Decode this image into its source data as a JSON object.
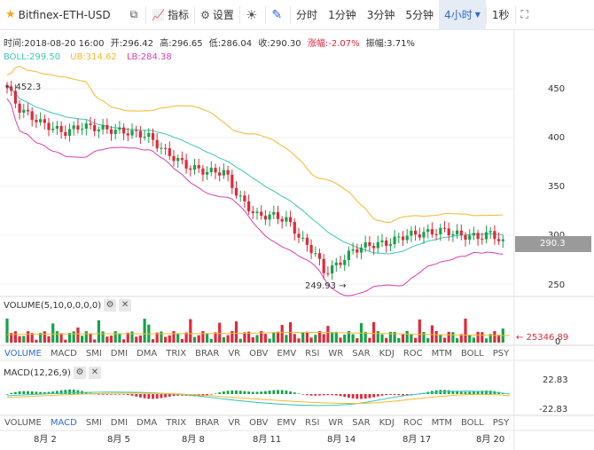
{
  "toolbar": {
    "symbol": "Bitfinex-ETH-USD",
    "indicator_label": "指标",
    "settings_label": "设置",
    "intervals": [
      "分时",
      "1分钟",
      "3分钟",
      "5分钟",
      "4小时"
    ],
    "active_interval": "4小时",
    "extra_interval": "1秒"
  },
  "info": {
    "time": "时间:2018-08-20 16:00",
    "open": "开:296.42",
    "high": "高:296.65",
    "low": "低:286.04",
    "close": "收:290.30",
    "change": "涨幅:-2.07%",
    "amplitude": "振幅:3.71%"
  },
  "boll": {
    "boll": "BOLL:299.50",
    "ub": "UB:314.62",
    "lb": "LB:284.38"
  },
  "price_axis": [
    "450",
    "400",
    "350",
    "300",
    "250"
  ],
  "last_price": "290.3",
  "annotations": {
    "high": "← 452.3",
    "low": "249.93 →"
  },
  "volume": {
    "label": "VOLUME(5,10,0,0,0,0)",
    "value": "← 25346.89",
    "zero": "0"
  },
  "macd": {
    "label": "MACD(12,26,9)",
    "top": "22.83",
    "bottom": "-22.83"
  },
  "indicator_tabs": [
    "VOLUME",
    "MACD",
    "SMI",
    "DMI",
    "DMA",
    "TRIX",
    "BRAR",
    "VR",
    "OBV",
    "EMV",
    "RSI",
    "WR",
    "SAR",
    "KDJ",
    "ROC",
    "MTM",
    "BOLL",
    "PSY"
  ],
  "volume_tabs_active": "VOLUME",
  "macd_tabs_active": "MACD",
  "dates": [
    "8月 2",
    "8月 5",
    "8月 8",
    "8月 11",
    "8月 14",
    "8月 17",
    "8月 20"
  ],
  "colors": {
    "up": "#16a34a",
    "down": "#e0293a",
    "boll": "#3cc7b4",
    "ub": "#f5b82e",
    "lb": "#d63fb4",
    "accent": "#2a6ad8"
  }
}
